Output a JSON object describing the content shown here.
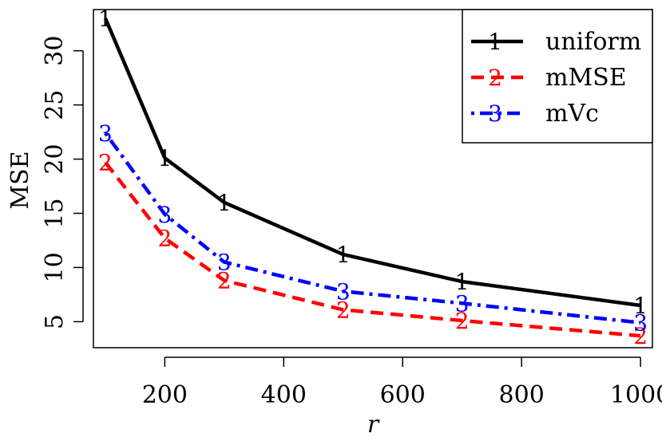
{
  "chart_data": {
    "type": "line",
    "title": "",
    "xlabel": "r",
    "ylabel": "MSE",
    "xlim": [
      80,
      1020
    ],
    "ylim": [
      2.6,
      33.8
    ],
    "x": [
      100,
      200,
      300,
      500,
      700,
      1000
    ],
    "x_ticks": [
      200,
      400,
      600,
      800,
      1000
    ],
    "y_ticks": [
      5,
      10,
      15,
      20,
      25,
      30
    ],
    "x_tick_labels": [
      "200",
      "400",
      "600",
      "800",
      "1000"
    ],
    "y_tick_labels": [
      "5",
      "10",
      "15",
      "20",
      "25",
      "30"
    ],
    "grid": false,
    "legend_position": "top-right",
    "series": [
      {
        "name": "uniform",
        "marker": "1",
        "color": "#000000",
        "dash": "solid",
        "values": [
          33.0,
          20.1,
          16.0,
          11.2,
          8.7,
          6.5
        ]
      },
      {
        "name": "mMSE",
        "marker": "2",
        "color": "#ff0000",
        "dash": "dashed",
        "values": [
          19.7,
          12.7,
          8.8,
          6.1,
          5.1,
          3.7
        ]
      },
      {
        "name": "mVc",
        "marker": "3",
        "color": "#0000ff",
        "dash": "dashdot",
        "values": [
          22.4,
          14.9,
          10.5,
          7.8,
          6.7,
          4.9
        ]
      }
    ]
  }
}
